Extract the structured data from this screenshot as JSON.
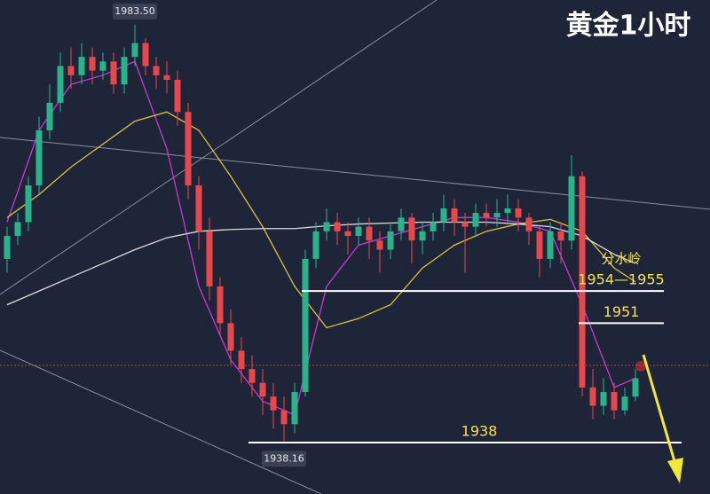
{
  "chart_data": {
    "type": "candlestick",
    "title": "黄金1小时",
    "ylim": [
      1935,
      1986
    ],
    "up_color": "#2bb28a",
    "down_color": "#e8474c",
    "open": [
      1958,
      1960.5,
      1962,
      1966,
      1972,
      1975,
      1979,
      1978,
      1980,
      1978.5,
      1979.5,
      1977,
      1980,
      1981.5,
      1979,
      1978,
      1977.5,
      1974,
      1966,
      1961,
      1955,
      1951,
      1948,
      1946,
      1944.5,
      1943,
      1941.5,
      1940,
      1943.5,
      1958,
      1961,
      1962,
      1961,
      1960.5,
      1961.5,
      1960,
      1959,
      1961,
      1962.5,
      1960,
      1961,
      1962,
      1963.5,
      1962,
      1961.5,
      1963,
      1962.5,
      1963,
      1963.5,
      1962.5,
      1961,
      1958,
      1961,
      1960,
      1967,
      1944,
      1942,
      1943.5,
      1941.5,
      1943
    ],
    "high": [
      1961.5,
      1963,
      1967,
      1973.5,
      1977,
      1980.5,
      1981,
      1981.5,
      1981,
      1980.5,
      1980.5,
      1981,
      1983.5,
      1982,
      1980,
      1979.5,
      1978.5,
      1975,
      1967,
      1962.5,
      1956,
      1952.5,
      1949.5,
      1947.5,
      1946,
      1944.5,
      1943,
      1944.5,
      1959,
      1962,
      1963.5,
      1963,
      1962,
      1962.5,
      1962.5,
      1961,
      1962,
      1963.5,
      1963,
      1962,
      1963,
      1965,
      1964.5,
      1963,
      1964,
      1964,
      1964.5,
      1965,
      1964.5,
      1963,
      1961.5,
      1962,
      1962,
      1969.3,
      1967.5,
      1946,
      1945,
      1944.5,
      1944,
      1946
    ],
    "low": [
      1956.5,
      1959.5,
      1961,
      1965,
      1971,
      1974,
      1976.5,
      1977,
      1977,
      1977.5,
      1976,
      1976,
      1979,
      1978,
      1976.5,
      1976,
      1972.5,
      1964.5,
      1959,
      1953.5,
      1949.5,
      1946.5,
      1944.5,
      1943,
      1941,
      1939.5,
      1938.16,
      1939,
      1943,
      1957,
      1960,
      1959.5,
      1958.5,
      1959.5,
      1958,
      1956.5,
      1958,
      1960,
      1957.5,
      1958.5,
      1960,
      1961,
      1960.5,
      1956.5,
      1960.5,
      1961.5,
      1961.5,
      1962,
      1961,
      1959.5,
      1956,
      1957,
      1957.5,
      1959,
      1943,
      1940.5,
      1941,
      1940.5,
      1941,
      1942.5
    ],
    "close": [
      1960.5,
      1962,
      1966,
      1972,
      1975,
      1979,
      1978,
      1980,
      1978.5,
      1979.5,
      1977,
      1980,
      1981.5,
      1979,
      1978,
      1977.5,
      1974,
      1966,
      1961,
      1955,
      1951,
      1948,
      1946,
      1944.5,
      1943,
      1941.5,
      1940,
      1943.5,
      1958,
      1961,
      1962,
      1961,
      1960.5,
      1961.5,
      1960,
      1959,
      1961,
      1962.5,
      1960,
      1961,
      1962,
      1963.5,
      1962,
      1961.5,
      1963,
      1962.5,
      1963,
      1963.5,
      1962.5,
      1961,
      1958,
      1961,
      1960,
      1967,
      1944,
      1942,
      1943.5,
      1941.5,
      1943,
      1945
    ],
    "series": [
      {
        "color": "#c83ad0",
        "x": [
          0,
          3,
          6,
          9,
          12,
          15,
          18,
          21,
          24,
          27,
          30,
          33,
          36,
          39,
          42,
          45,
          48,
          51,
          54,
          57,
          59
        ],
        "values": [
          1962,
          1972,
          1977,
          1978,
          1979.5,
          1970,
          1955,
          1947,
          1942.5,
          1941,
          1955,
          1959.5,
          1960.5,
          1961.5,
          1962.5,
          1962.5,
          1962,
          1961,
          1953,
          1944,
          1945
        ]
      },
      {
        "color": "#d9c43c",
        "x": [
          0,
          3,
          6,
          9,
          12,
          15,
          18,
          21,
          24,
          27,
          30,
          33,
          36,
          39,
          42,
          45,
          48,
          51,
          54,
          57,
          59
        ],
        "values": [
          1962.5,
          1965,
          1968,
          1970.5,
          1973,
          1974,
          1972,
          1967,
          1961.5,
          1955,
          1950.5,
          1951.5,
          1953,
          1957,
          1959.5,
          1961,
          1961.8,
          1962.3,
          1961,
          1957,
          1955.5
        ]
      },
      {
        "color": "#dcdcdc",
        "x": [
          0,
          3,
          6,
          9,
          12,
          15,
          18,
          21,
          24,
          27,
          30,
          33,
          36,
          39,
          42,
          45,
          48,
          51,
          54,
          57,
          59
        ],
        "values": [
          1953,
          1954.5,
          1956,
          1957.5,
          1959,
          1960.3,
          1961,
          1961.2,
          1961.3,
          1961.3,
          1961.6,
          1961.8,
          1961.9,
          1962,
          1962,
          1962,
          1961.8,
          1961.5,
          1960.5,
          1958.5,
          1957.5
        ]
      }
    ],
    "price_labels": [
      {
        "value": 1983.5,
        "label": "1983.50"
      },
      {
        "value": 1938.16,
        "label": "1938.16"
      }
    ],
    "levels": [
      {
        "label": "1954—1955",
        "values": [
          1954,
          1955
        ],
        "note": "分水岭"
      },
      {
        "label": "1951",
        "values": [
          1951
        ]
      },
      {
        "label": "1938",
        "values": [
          1938
        ]
      }
    ]
  }
}
